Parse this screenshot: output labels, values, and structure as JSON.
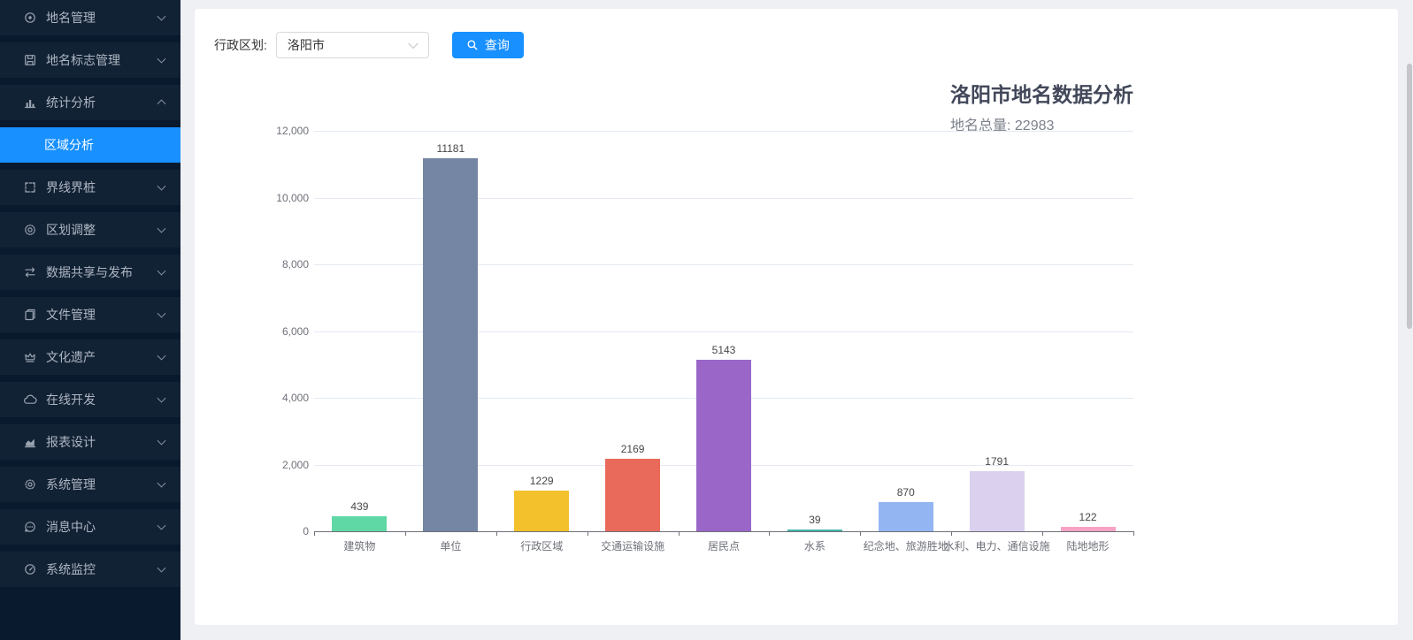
{
  "sidebar": {
    "items": [
      {
        "label": "地名管理",
        "icon": "map-pin-icon"
      },
      {
        "label": "地名标志管理",
        "icon": "save-icon"
      },
      {
        "label": "统计分析",
        "icon": "bar-chart-icon",
        "expanded": true,
        "children": [
          {
            "label": "区域分析",
            "active": true
          }
        ]
      },
      {
        "label": "界线界桩",
        "icon": "border-frame-icon"
      },
      {
        "label": "区划调整",
        "icon": "medal-icon"
      },
      {
        "label": "数据共享与发布",
        "icon": "sync-icon"
      },
      {
        "label": "文件管理",
        "icon": "files-icon"
      },
      {
        "label": "文化遗产",
        "icon": "crown-icon"
      },
      {
        "label": "在线开发",
        "icon": "cloud-icon"
      },
      {
        "label": "报表设计",
        "icon": "area-chart-icon"
      },
      {
        "label": "系统管理",
        "icon": "gear-icon"
      },
      {
        "label": "消息中心",
        "icon": "message-icon"
      },
      {
        "label": "系统监控",
        "icon": "gauge-icon"
      }
    ]
  },
  "filter": {
    "label": "行政区划:",
    "select_value": "洛阳市",
    "search_button": "查询"
  },
  "chart_data": {
    "type": "bar",
    "title": "洛阳市地名数据分析",
    "subtitle": "地名总量: 22983",
    "categories": [
      "建筑物",
      "单位",
      "行政区域",
      "交通运输设施",
      "居民点",
      "水系",
      "纪念地、旅游胜地",
      "水利、电力、通信设施",
      "陆地地形"
    ],
    "values": [
      439,
      11181,
      1229,
      2169,
      5143,
      39,
      870,
      1791,
      122
    ],
    "bar_colors": [
      "#5fd8a5",
      "#7486a3",
      "#f2c12c",
      "#e96a5a",
      "#9a67c8",
      "#45b5aa",
      "#93b5f2",
      "#dbd0ee",
      "#f7a2c4"
    ],
    "ylim": [
      0,
      12000
    ],
    "ytick_interval": 2000,
    "ytick_labels": [
      "0",
      "2,000",
      "4,000",
      "6,000",
      "8,000",
      "10,000",
      "12,000"
    ],
    "grid": true,
    "legend": "none"
  }
}
